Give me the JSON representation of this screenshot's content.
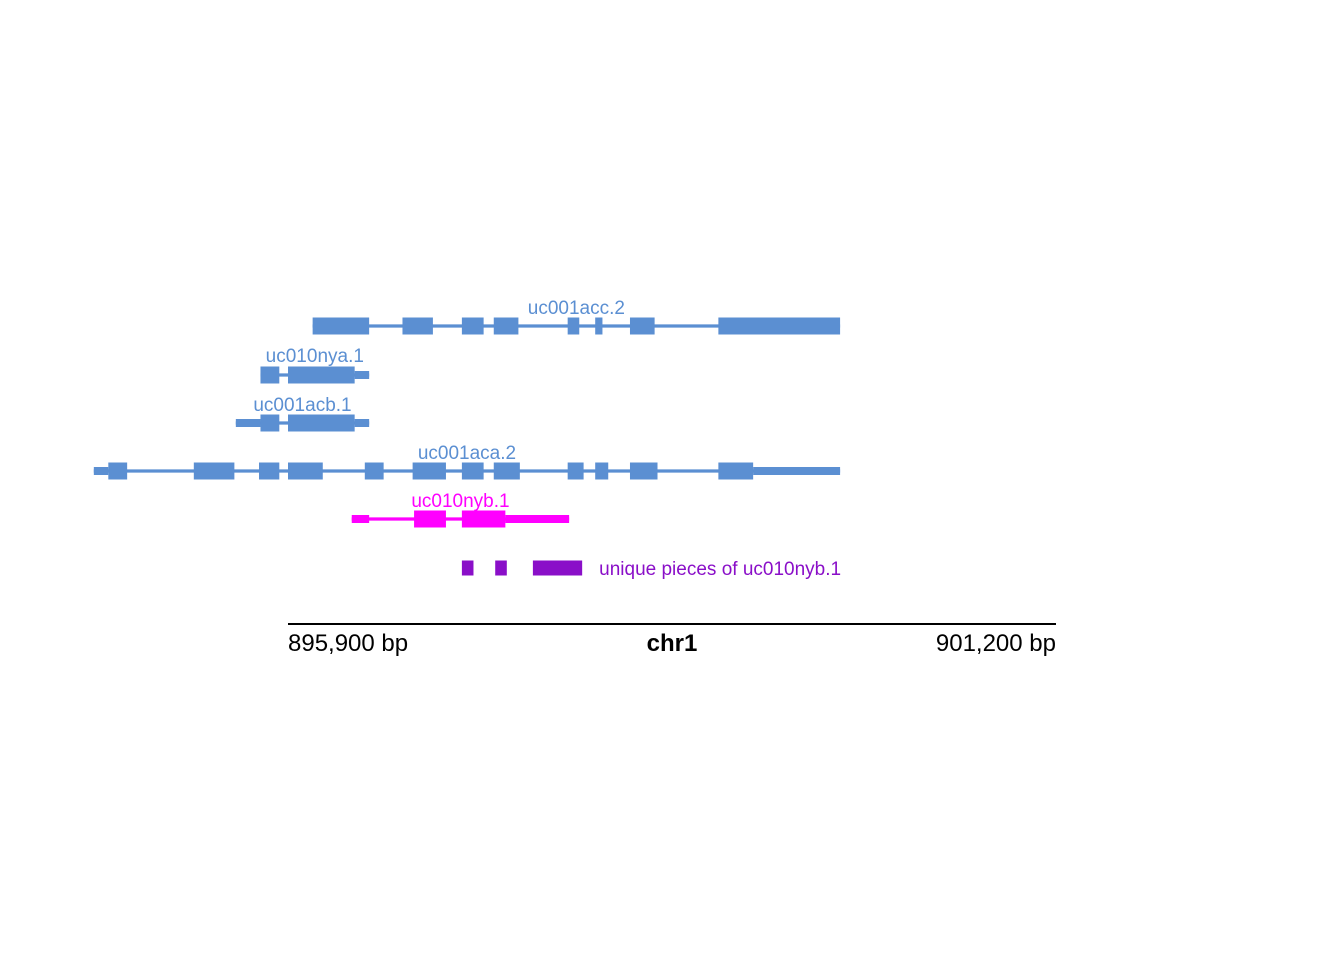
{
  "axis": {
    "start_label": "895,900 bp",
    "end_label": "901,200 bp",
    "chromosome": "chr1",
    "start": 895900,
    "end": 901200
  },
  "colors": {
    "transcript": "#5b8fd2",
    "highlight": "#ff00ff",
    "unique": "#8a0fc8",
    "axis": "#000000"
  },
  "transcripts": [
    {
      "name": "uc001acc.2",
      "color": "transcript",
      "start": 896070,
      "end": 899710,
      "exons": [
        [
          896070,
          896460
        ],
        [
          896690,
          896900
        ],
        [
          897100,
          897250
        ],
        [
          897320,
          897490
        ],
        [
          897830,
          897910
        ],
        [
          898020,
          898070
        ],
        [
          898260,
          898430
        ],
        [
          898870,
          899710
        ]
      ]
    },
    {
      "name": "uc010nya.1",
      "color": "transcript",
      "start": 895710,
      "end": 896460,
      "exons": [
        [
          895710,
          895840
        ],
        [
          895900,
          896360
        ]
      ],
      "thin": [
        [
          896360,
          896460
        ]
      ]
    },
    {
      "name": "uc001acb.1",
      "color": "transcript",
      "start": 895540,
      "end": 896460,
      "exons": [
        [
          895710,
          895840
        ],
        [
          895900,
          896360
        ]
      ],
      "thin": [
        [
          895540,
          895710
        ],
        [
          896360,
          896460
        ]
      ]
    },
    {
      "name": "uc001aca.2",
      "color": "transcript",
      "start": 894560,
      "end": 899710,
      "exons": [
        [
          894660,
          894790
        ],
        [
          895250,
          895530
        ],
        [
          895700,
          895840
        ],
        [
          895900,
          896140
        ],
        [
          896430,
          896560
        ],
        [
          896760,
          896990
        ],
        [
          897100,
          897250
        ],
        [
          897320,
          897500
        ],
        [
          897830,
          897940
        ],
        [
          898020,
          898110
        ],
        [
          898260,
          898450
        ],
        [
          898870,
          899110
        ]
      ],
      "thin": [
        [
          894560,
          894660
        ],
        [
          899110,
          899710
        ]
      ]
    },
    {
      "name": "uc010nyb.1",
      "color": "highlight",
      "start": 896340,
      "end": 897840,
      "exons": [
        [
          896770,
          896990
        ],
        [
          897100,
          897400
        ]
      ],
      "thin": [
        [
          896340,
          896460
        ],
        [
          897400,
          897840
        ]
      ]
    }
  ],
  "unique_pieces": {
    "label": "unique pieces of uc010nyb.1",
    "exons": [
      [
        897100,
        897180
      ],
      [
        897330,
        897410
      ],
      [
        897590,
        897930
      ]
    ]
  }
}
